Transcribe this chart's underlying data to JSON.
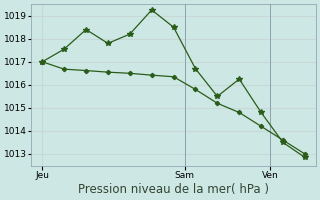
{
  "line1_x": [
    0,
    1,
    2,
    3,
    4,
    5,
    6,
    7,
    8,
    9,
    10,
    11,
    12
  ],
  "line1_y": [
    1017.0,
    1017.55,
    1018.4,
    1017.8,
    1018.2,
    1019.25,
    1018.5,
    1016.7,
    1015.5,
    1016.25,
    1014.8,
    1013.5,
    1012.85
  ],
  "line2_x": [
    0,
    1,
    2,
    3,
    4,
    5,
    6,
    7,
    8,
    9,
    10,
    11,
    12
  ],
  "line2_y": [
    1017.0,
    1016.68,
    1016.62,
    1016.55,
    1016.5,
    1016.42,
    1016.35,
    1015.8,
    1015.2,
    1014.8,
    1014.2,
    1013.6,
    1013.0
  ],
  "line_color": "#2a5c1a",
  "background_color": "#cde8e4",
  "grid_color": "#c8d8d4",
  "ylim": [
    1012.5,
    1019.5
  ],
  "yticks": [
    1013,
    1014,
    1015,
    1016,
    1017,
    1018,
    1019
  ],
  "xlabel": "Pression niveau de la mer( hPa )",
  "xtick_positions": [
    0,
    6.5,
    10.4
  ],
  "xtick_labels": [
    "Jeu",
    "Sam",
    "Ven"
  ],
  "vline_x": [
    6.5,
    10.4
  ],
  "xlim": [
    -0.5,
    12.5
  ],
  "tick_fontsize": 6.5,
  "xlabel_fontsize": 8.5
}
